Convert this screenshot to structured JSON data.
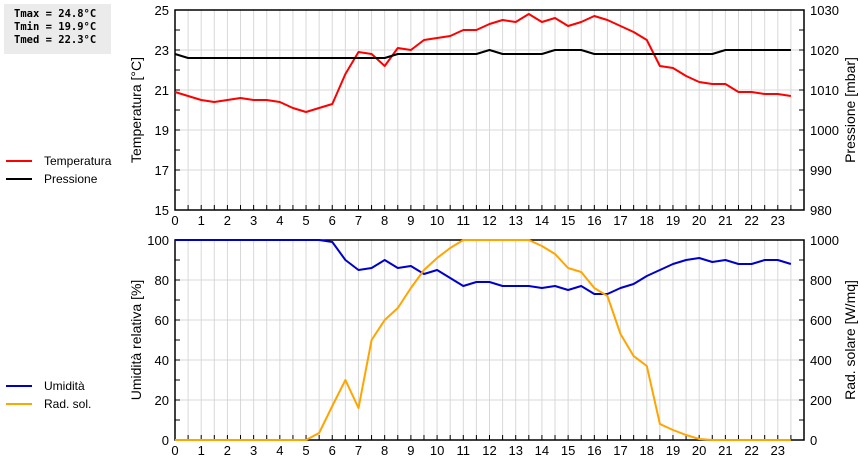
{
  "stats": {
    "tmax": "Tmax = 24.8°C",
    "tmin": "Tmin = 19.9°C",
    "tmed": "Tmed = 22.3°C"
  },
  "legend_top": [
    {
      "label": "Temperatura",
      "color": "#ff0000"
    },
    {
      "label": "Pressione",
      "color": "#000000"
    }
  ],
  "legend_bottom": [
    {
      "label": "Umidità",
      "color": "#0000cc"
    },
    {
      "label": "Rad. sol.",
      "color": "#ffa500"
    }
  ],
  "chart_data": [
    {
      "type": "line",
      "title": "",
      "xlabel": "",
      "ylabel": "Temperatura [°C]",
      "y2label": "Pressione [mbar]",
      "ylim": [
        15,
        25
      ],
      "y2lim": [
        980,
        1030
      ],
      "yticks": [
        15,
        17,
        19,
        21,
        23,
        25
      ],
      "y2ticks": [
        980,
        990,
        1000,
        1010,
        1020,
        1030
      ],
      "xticks": [
        0,
        1,
        2,
        3,
        4,
        5,
        6,
        7,
        8,
        9,
        10,
        11,
        12,
        13,
        14,
        15,
        16,
        17,
        18,
        19,
        20,
        21,
        22,
        23
      ],
      "grid": true,
      "x": [
        0,
        0.5,
        1,
        1.5,
        2,
        2.5,
        3,
        3.5,
        4,
        4.5,
        5,
        5.5,
        6,
        6.5,
        7,
        7.5,
        8,
        8.5,
        9,
        9.5,
        10,
        10.5,
        11,
        11.5,
        12,
        12.5,
        13,
        13.5,
        14,
        14.5,
        15,
        15.5,
        16,
        16.5,
        17,
        17.5,
        18,
        18.5,
        19,
        19.5,
        20,
        20.5,
        21,
        21.5,
        22,
        22.5,
        23,
        23.5
      ],
      "series": [
        {
          "name": "Temperatura",
          "axis": "left",
          "color": "#ff0000",
          "values": [
            20.9,
            20.7,
            20.5,
            20.4,
            20.5,
            20.6,
            20.5,
            20.5,
            20.4,
            20.1,
            19.9,
            20.1,
            20.3,
            21.8,
            22.9,
            22.8,
            22.2,
            23.1,
            23.0,
            23.5,
            23.6,
            23.7,
            24.0,
            24.0,
            24.3,
            24.5,
            24.4,
            24.8,
            24.4,
            24.6,
            24.2,
            24.4,
            24.7,
            24.5,
            24.2,
            23.9,
            23.5,
            22.2,
            22.1,
            21.7,
            21.4,
            21.3,
            21.3,
            20.9,
            20.9,
            20.8,
            20.8,
            20.7
          ]
        },
        {
          "name": "Pressione",
          "axis": "right",
          "color": "#000000",
          "values": [
            1019,
            1018,
            1018,
            1018,
            1018,
            1018,
            1018,
            1018,
            1018,
            1018,
            1018,
            1018,
            1018,
            1018,
            1018,
            1018,
            1018,
            1019,
            1019,
            1019,
            1019,
            1019,
            1019,
            1019,
            1020,
            1019,
            1019,
            1019,
            1019,
            1020,
            1020,
            1020,
            1019,
            1019,
            1019,
            1019,
            1019,
            1019,
            1019,
            1019,
            1019,
            1019,
            1020,
            1020,
            1020,
            1020,
            1020,
            1020
          ]
        }
      ]
    },
    {
      "type": "line",
      "title": "",
      "xlabel": "",
      "ylabel": "Umidità relativa [%]",
      "y2label": "Rad. solare [W/mq]",
      "ylim": [
        0,
        100
      ],
      "y2lim": [
        0,
        1000
      ],
      "yticks": [
        0,
        20,
        40,
        60,
        80,
        100
      ],
      "y2ticks": [
        0,
        200,
        400,
        600,
        800,
        1000
      ],
      "xticks": [
        0,
        1,
        2,
        3,
        4,
        5,
        6,
        7,
        8,
        9,
        10,
        11,
        12,
        13,
        14,
        15,
        16,
        17,
        18,
        19,
        20,
        21,
        22,
        23
      ],
      "grid": true,
      "x": [
        0,
        0.5,
        1,
        1.5,
        2,
        2.5,
        3,
        3.5,
        4,
        4.5,
        5,
        5.5,
        6,
        6.5,
        7,
        7.5,
        8,
        8.5,
        9,
        9.5,
        10,
        10.5,
        11,
        11.5,
        12,
        12.5,
        13,
        13.5,
        14,
        14.5,
        15,
        15.5,
        16,
        16.5,
        17,
        17.5,
        18,
        18.5,
        19,
        19.5,
        20,
        20.5,
        21,
        21.5,
        22,
        22.5,
        23,
        23.5
      ],
      "series": [
        {
          "name": "Umidità",
          "axis": "left",
          "color": "#0000cc",
          "values": [
            100,
            100,
            100,
            100,
            100,
            100,
            100,
            100,
            100,
            100,
            100,
            100,
            99,
            90,
            85,
            86,
            90,
            86,
            87,
            83,
            85,
            81,
            77,
            79,
            79,
            77,
            77,
            77,
            76,
            77,
            75,
            77,
            73,
            73,
            76,
            78,
            82,
            85,
            88,
            90,
            91,
            89,
            90,
            88,
            88,
            90,
            90,
            88
          ]
        },
        {
          "name": "Rad. sol.",
          "axis": "right",
          "color": "#ffa500",
          "values": [
            0,
            0,
            0,
            0,
            0,
            0,
            0,
            0,
            0,
            0,
            0,
            35,
            170,
            300,
            160,
            500,
            600,
            660,
            760,
            850,
            910,
            960,
            1000,
            1000,
            1000,
            1000,
            1000,
            1000,
            970,
            930,
            860,
            840,
            760,
            720,
            530,
            420,
            370,
            80,
            50,
            25,
            5,
            0,
            0,
            0,
            0,
            0,
            0,
            0
          ]
        }
      ]
    }
  ]
}
